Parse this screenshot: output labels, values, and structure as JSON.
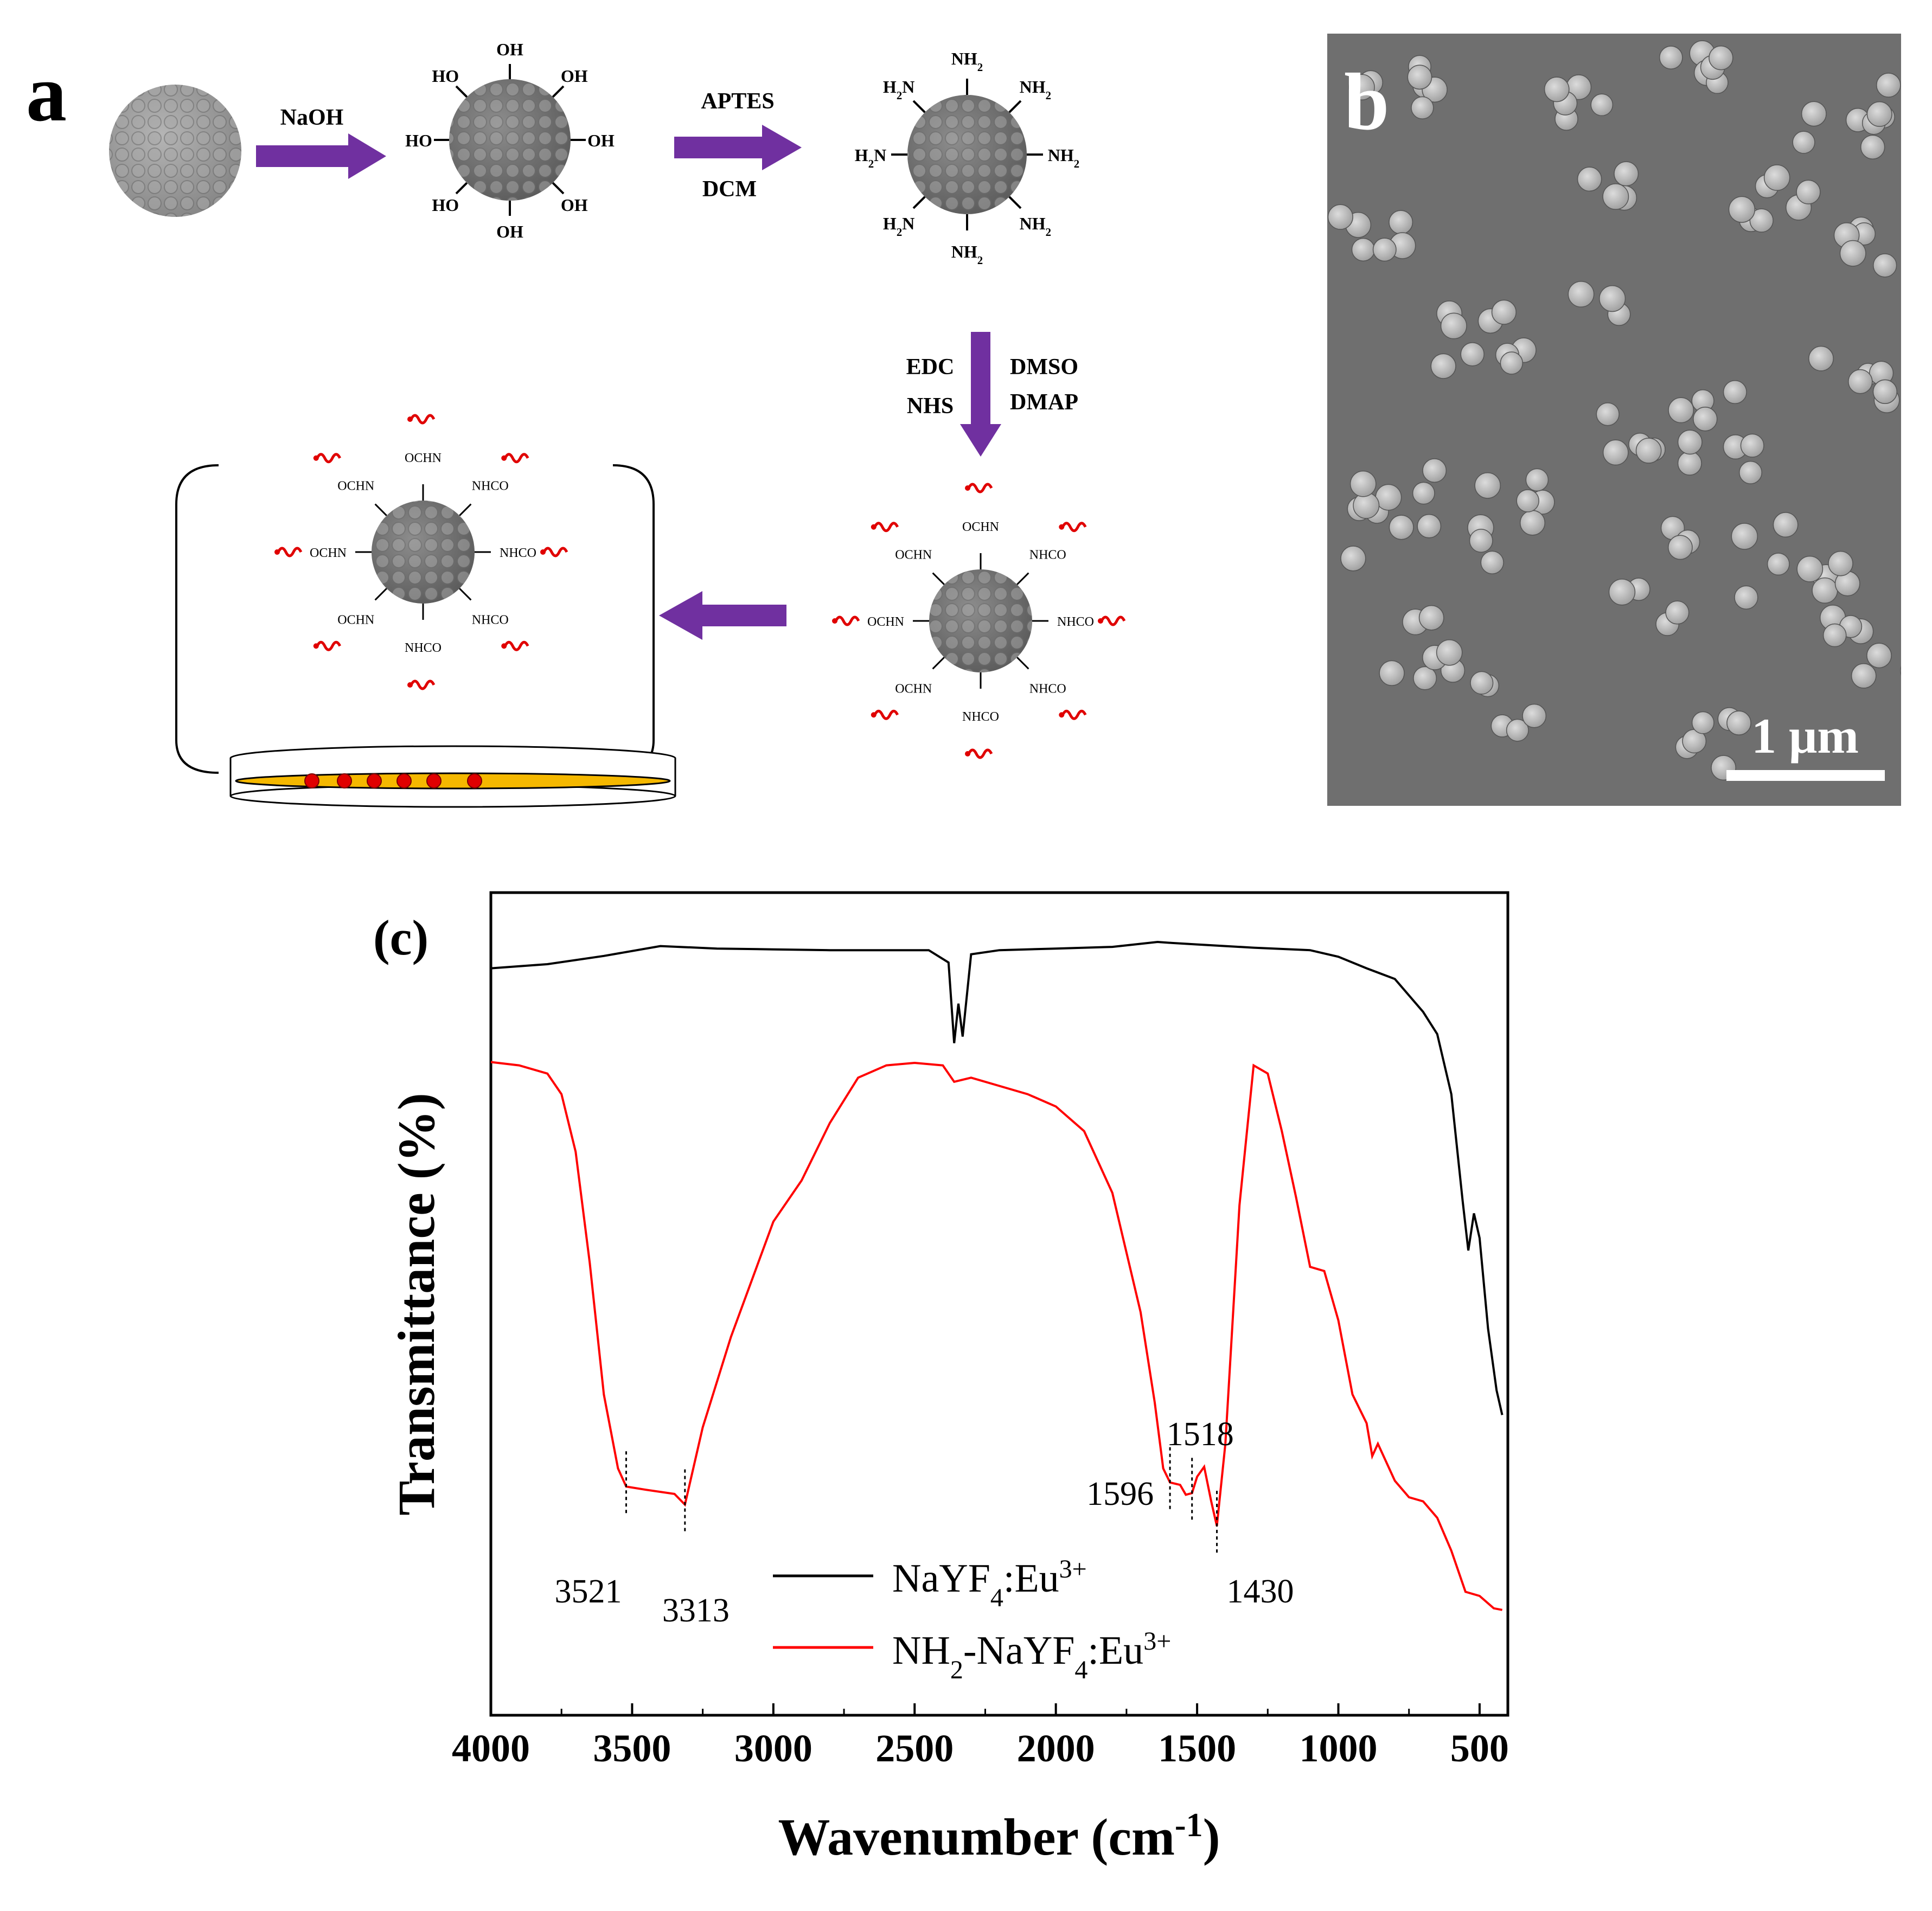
{
  "panel_a": {
    "letter": "a",
    "reagents": {
      "step1": "NaOH",
      "step2_top": "APTES",
      "step2_bottom": "DCM",
      "step3_left_top": "EDC",
      "step3_left_bottom": "NHS",
      "step3_right_top": "DMSO",
      "step3_right_bottom": "DMAP"
    },
    "labels": {
      "hydroxyl": "OH",
      "hydroxyl_left": "HO",
      "amine": "NH2",
      "amine_left": "H2N",
      "amide_right": "NHCO",
      "amide_left": "OCHN"
    }
  },
  "panel_b": {
    "letter": "b",
    "scale_bar": "1 μm",
    "colors": {
      "background": "#6f6f6f",
      "particle": "#bdbdbd",
      "scale_bar": "#ffffff"
    }
  },
  "chart_data": {
    "panel_label": "(c)",
    "type": "line",
    "xlabel": "Wavenumber (cm-1)",
    "ylabel": "Transmittance (%)",
    "xlim": [
      4000,
      400
    ],
    "x_reversed": true,
    "ylim": [
      0,
      100
    ],
    "y_ticks_shown": false,
    "x_ticks": [
      4000,
      3500,
      3000,
      2500,
      2000,
      1500,
      1000,
      500
    ],
    "grid": false,
    "legend_position": "bottom-center",
    "series": [
      {
        "name": "NaYF4:Eu3+",
        "color": "#000000",
        "points": [
          [
            4000,
            90.8
          ],
          [
            3800,
            91.3
          ],
          [
            3600,
            92.3
          ],
          [
            3400,
            93.5
          ],
          [
            3200,
            93.2
          ],
          [
            3000,
            93.1
          ],
          [
            2800,
            93.0
          ],
          [
            2600,
            93.0
          ],
          [
            2450,
            93.0
          ],
          [
            2380,
            91.5
          ],
          [
            2360,
            81.7
          ],
          [
            2345,
            86.5
          ],
          [
            2330,
            82.5
          ],
          [
            2300,
            92.5
          ],
          [
            2200,
            93.0
          ],
          [
            2000,
            93.2
          ],
          [
            1800,
            93.4
          ],
          [
            1640,
            94.0
          ],
          [
            1600,
            93.9
          ],
          [
            1500,
            93.7
          ],
          [
            1300,
            93.3
          ],
          [
            1100,
            93.0
          ],
          [
            1000,
            92.2
          ],
          [
            900,
            90.8
          ],
          [
            800,
            89.5
          ],
          [
            700,
            85.5
          ],
          [
            650,
            82.8
          ],
          [
            600,
            75.5
          ],
          [
            560,
            62.5
          ],
          [
            540,
            56.5
          ],
          [
            520,
            61.0
          ],
          [
            500,
            58.0
          ],
          [
            470,
            47.0
          ],
          [
            440,
            39.5
          ],
          [
            420,
            36.5
          ]
        ]
      },
      {
        "name": "NH2-NaYF4:Eu3+",
        "color": "#ff0000",
        "points": [
          [
            4000,
            79.4
          ],
          [
            3900,
            79.0
          ],
          [
            3800,
            78.0
          ],
          [
            3750,
            75.5
          ],
          [
            3700,
            68.5
          ],
          [
            3650,
            55.0
          ],
          [
            3600,
            39.0
          ],
          [
            3550,
            30.0
          ],
          [
            3521,
            27.8
          ],
          [
            3450,
            27.4
          ],
          [
            3350,
            26.9
          ],
          [
            3313,
            25.6
          ],
          [
            3250,
            35.0
          ],
          [
            3150,
            46.0
          ],
          [
            3000,
            60.0
          ],
          [
            2900,
            65.0
          ],
          [
            2800,
            72.0
          ],
          [
            2700,
            77.5
          ],
          [
            2600,
            79.0
          ],
          [
            2500,
            79.3
          ],
          [
            2400,
            79.0
          ],
          [
            2360,
            77.0
          ],
          [
            2300,
            77.5
          ],
          [
            2200,
            76.5
          ],
          [
            2100,
            75.5
          ],
          [
            2000,
            74.0
          ],
          [
            1900,
            71.0
          ],
          [
            1800,
            63.5
          ],
          [
            1700,
            49.0
          ],
          [
            1650,
            38.0
          ],
          [
            1620,
            30.0
          ],
          [
            1596,
            28.3
          ],
          [
            1560,
            28.0
          ],
          [
            1540,
            26.8
          ],
          [
            1518,
            27.0
          ],
          [
            1500,
            29.0
          ],
          [
            1475,
            30.2
          ],
          [
            1450,
            26.0
          ],
          [
            1430,
            23.0
          ],
          [
            1400,
            33.0
          ],
          [
            1350,
            62.0
          ],
          [
            1300,
            79.0
          ],
          [
            1250,
            78.0
          ],
          [
            1200,
            71.0
          ],
          [
            1150,
            63.0
          ],
          [
            1100,
            54.5
          ],
          [
            1050,
            54.0
          ],
          [
            1000,
            48.0
          ],
          [
            950,
            39.0
          ],
          [
            900,
            35.5
          ],
          [
            880,
            31.5
          ],
          [
            860,
            33.0
          ],
          [
            800,
            28.5
          ],
          [
            750,
            26.5
          ],
          [
            700,
            26.0
          ],
          [
            650,
            24.0
          ],
          [
            600,
            20.0
          ],
          [
            550,
            15.0
          ],
          [
            500,
            14.5
          ],
          [
            450,
            13.0
          ],
          [
            420,
            12.8
          ]
        ]
      }
    ],
    "annotations": [
      {
        "text": "3521",
        "x": 3521
      },
      {
        "text": "3313",
        "x": 3313
      },
      {
        "text": "1596",
        "x": 1596
      },
      {
        "text": "1518",
        "x": 1518
      },
      {
        "text": "1430",
        "x": 1430
      }
    ]
  }
}
